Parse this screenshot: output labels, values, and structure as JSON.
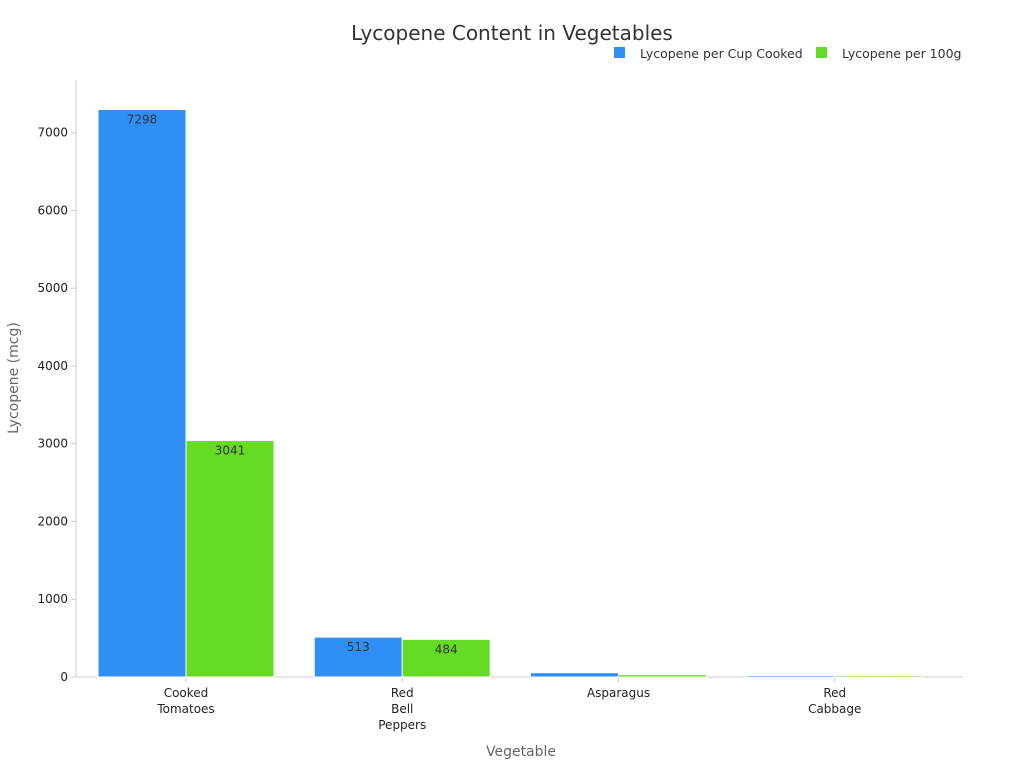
{
  "chart_data": {
    "type": "bar",
    "title": "Lycopene Content in Vegetables",
    "xlabel": "Vegetable",
    "ylabel": "Lycopene (mcg)",
    "categories": [
      [
        "Cooked",
        "Tomatoes"
      ],
      [
        "Red",
        "Bell",
        "Peppers"
      ],
      [
        "Asparagus"
      ],
      [
        "Red",
        "Cabbage"
      ]
    ],
    "series": [
      {
        "name": "Lycopene per Cup Cooked",
        "color": "#2f8ff5",
        "values": [
          7298,
          513,
          55,
          20
        ],
        "labels": [
          "7298",
          "513",
          "",
          ""
        ]
      },
      {
        "name": "Lycopene per 100g",
        "color": "#66db26",
        "values": [
          3041,
          484,
          30,
          20
        ],
        "labels": [
          "3041",
          "484",
          "",
          ""
        ]
      }
    ],
    "yticks": [
      0,
      1000,
      2000,
      3000,
      4000,
      5000,
      6000,
      7000
    ],
    "ylim": [
      0,
      7680
    ],
    "legend_position": "top-right",
    "grid": false
  }
}
